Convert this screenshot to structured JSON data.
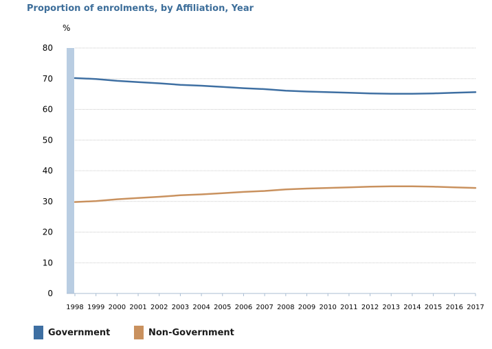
{
  "chart_data": {
    "type": "line",
    "title": "Proportion of enrolments, by Affiliation, Year",
    "ylabel": "%",
    "xlabel": "",
    "ylim": [
      0,
      80
    ],
    "yticks": [
      0,
      10,
      20,
      30,
      40,
      50,
      60,
      70,
      80
    ],
    "categories": [
      "1998",
      "1999",
      "2000",
      "2001",
      "2002",
      "2003",
      "2004",
      "2005",
      "2006",
      "2007",
      "2008",
      "2009",
      "2010",
      "2011",
      "2012",
      "2013",
      "2014",
      "2015",
      "2016",
      "2017"
    ],
    "series": [
      {
        "name": "Government",
        "color": "#3e6fa2",
        "values": [
          70.2,
          69.9,
          69.3,
          68.9,
          68.5,
          68.0,
          67.7,
          67.3,
          66.9,
          66.6,
          66.1,
          65.8,
          65.6,
          65.4,
          65.2,
          65.1,
          65.1,
          65.2,
          65.4,
          65.6
        ]
      },
      {
        "name": "Non-Government",
        "color": "#c9915e",
        "values": [
          29.8,
          30.1,
          30.7,
          31.1,
          31.5,
          32.0,
          32.3,
          32.7,
          33.1,
          33.4,
          33.9,
          34.2,
          34.4,
          34.6,
          34.8,
          34.9,
          34.9,
          34.8,
          34.6,
          34.4
        ]
      }
    ],
    "grid": true,
    "legend_position": "bottom-left"
  }
}
